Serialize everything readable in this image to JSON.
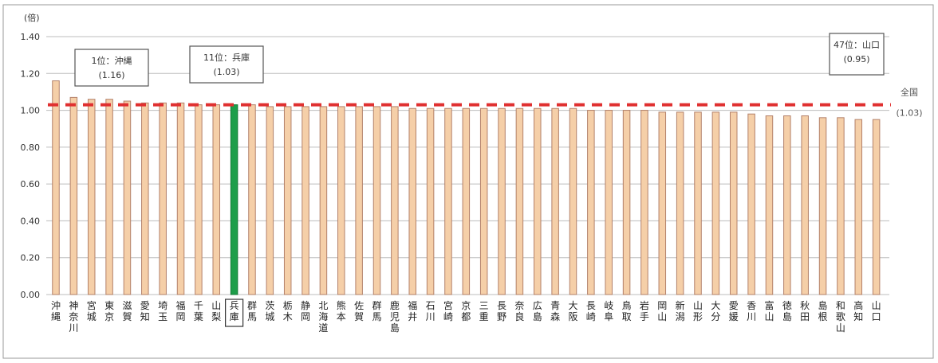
{
  "chart_data": {
    "type": "bar",
    "unit_label": "(倍)",
    "ylim": [
      0,
      1.4
    ],
    "yticks": [
      "0.00",
      "0.20",
      "0.40",
      "0.60",
      "0.80",
      "1.00",
      "1.20",
      "1.40"
    ],
    "grid": true,
    "highlight_index": 10,
    "reference_line": {
      "label": "全国",
      "value_text": "(1.03)",
      "value": 1.03,
      "color": "#e03030"
    },
    "categories": [
      "沖縄",
      "神奈川",
      "宮城",
      "東京",
      "滋賀",
      "愛知",
      "埼玉",
      "福岡",
      "千葉",
      "山梨",
      "兵庫",
      "群馬",
      "茨城",
      "栃木",
      "静岡",
      "北海道",
      "熊本",
      "佐賀",
      "群馬",
      "鹿児島",
      "福井",
      "石川",
      "宮崎",
      "京都",
      "三重",
      "長野",
      "奈良",
      "広島",
      "青森",
      "大阪",
      "長崎",
      "岐阜",
      "鳥取",
      "岩手",
      "岡山",
      "新潟",
      "山形",
      "大分",
      "愛媛",
      "香川",
      "富山",
      "徳島",
      "秋田",
      "島根",
      "和歌山",
      "高知",
      "山口"
    ],
    "values": [
      1.16,
      1.07,
      1.06,
      1.06,
      1.05,
      1.04,
      1.04,
      1.04,
      1.03,
      1.03,
      1.03,
      1.03,
      1.02,
      1.02,
      1.02,
      1.02,
      1.02,
      1.02,
      1.02,
      1.02,
      1.01,
      1.01,
      1.01,
      1.01,
      1.01,
      1.01,
      1.01,
      1.01,
      1.01,
      1.01,
      1.0,
      1.0,
      1.0,
      1.0,
      0.99,
      0.99,
      0.99,
      0.99,
      0.99,
      0.98,
      0.97,
      0.97,
      0.97,
      0.96,
      0.96,
      0.95,
      0.95
    ],
    "bar_color": "#f5cfa8",
    "highlight_color": "#1e9e4a",
    "annotations": [
      {
        "line1": "1位：沖縄",
        "line2": "(1.16)"
      },
      {
        "line1": "11位：兵庫",
        "line2": "(1.03)"
      },
      {
        "line1": "47位：山口",
        "line2": "(0.95)"
      }
    ]
  }
}
